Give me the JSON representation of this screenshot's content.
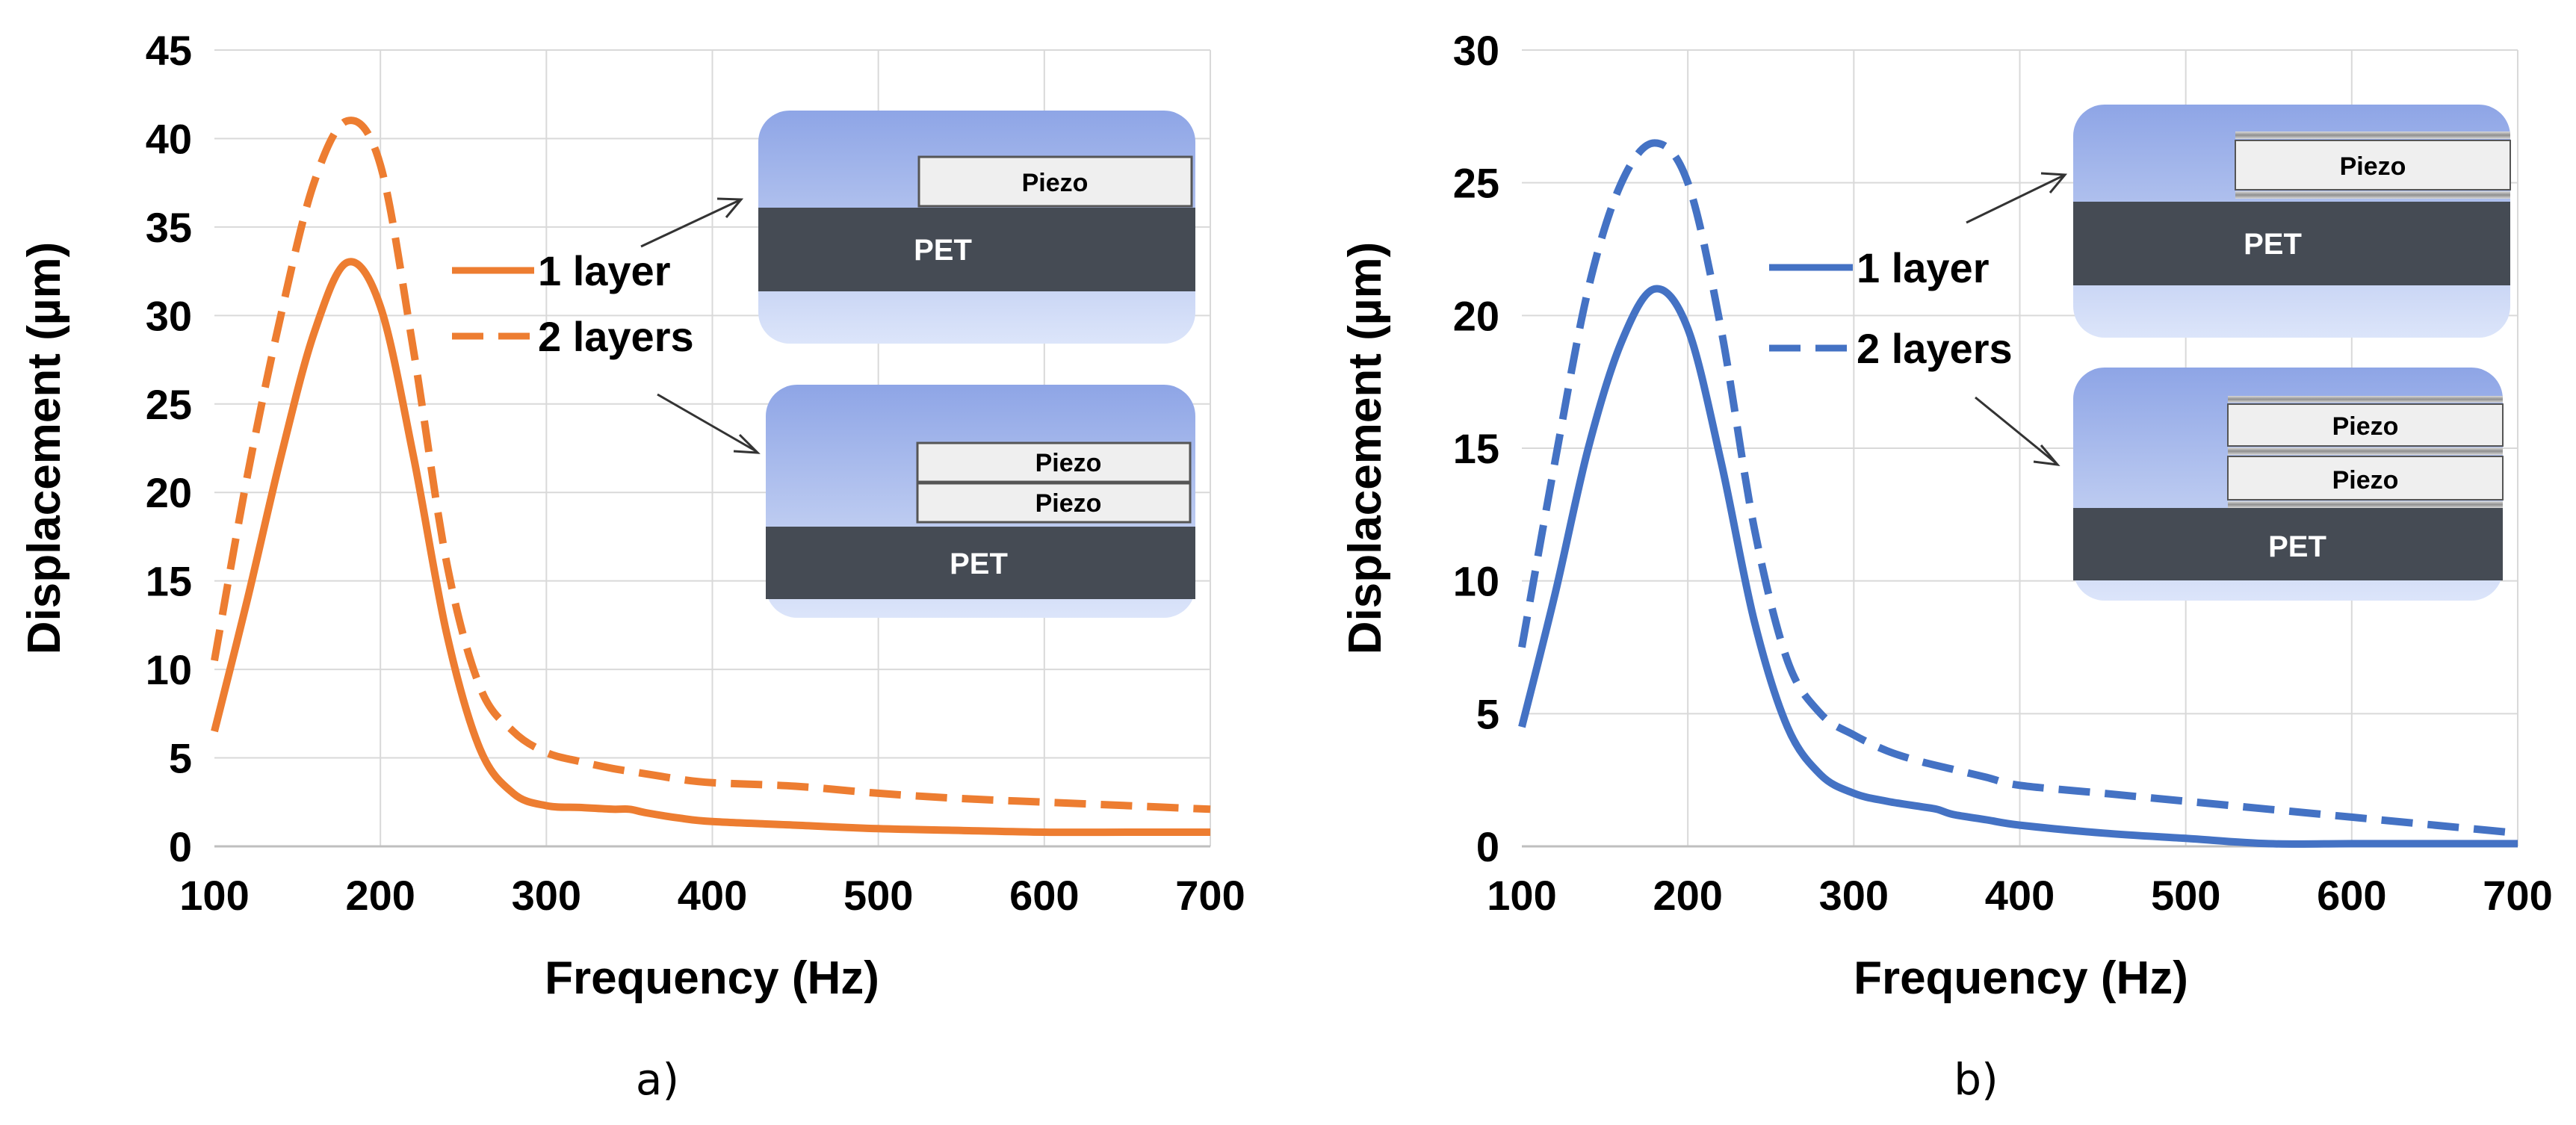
{
  "chart_data": [
    {
      "type": "line",
      "panel_label": "a)",
      "title": "",
      "xlabel": "Frequency (Hz)",
      "ylabel": "Displacement (µm)",
      "xlim": [
        100,
        700
      ],
      "ylim": [
        0,
        45
      ],
      "xticks": [
        100,
        200,
        300,
        400,
        500,
        600,
        700
      ],
      "yticks": [
        0,
        5,
        10,
        15,
        20,
        25,
        30,
        35,
        40,
        45
      ],
      "grid": true,
      "color": "#ED7D31",
      "series": [
        {
          "name": "1 layer",
          "style": "solid",
          "x": [
            100,
            120,
            140,
            160,
            180,
            200,
            220,
            240,
            260,
            280,
            300,
            320,
            340,
            350,
            360,
            380,
            400,
            450,
            500,
            550,
            600,
            650,
            700
          ],
          "y": [
            6.5,
            14,
            22,
            29,
            33,
            30.5,
            22,
            12,
            5.5,
            3,
            2.3,
            2.2,
            2.1,
            2.1,
            1.9,
            1.6,
            1.4,
            1.2,
            1.0,
            0.9,
            0.8,
            0.8,
            0.8
          ]
        },
        {
          "name": "2 layers",
          "style": "dashed",
          "x": [
            100,
            120,
            140,
            160,
            180,
            200,
            220,
            240,
            260,
            280,
            300,
            320,
            340,
            360,
            380,
            400,
            450,
            500,
            550,
            600,
            650,
            700
          ],
          "y": [
            10.5,
            21,
            30,
            37.5,
            41,
            38.5,
            28,
            16,
            9,
            6.5,
            5.3,
            4.8,
            4.4,
            4.1,
            3.8,
            3.6,
            3.4,
            3.0,
            2.7,
            2.5,
            2.3,
            2.1
          ]
        }
      ],
      "insets": [
        {
          "layers": [
            "Piezo"
          ],
          "substrate": "PET"
        },
        {
          "layers": [
            "Piezo",
            "Piezo"
          ],
          "substrate": "PET"
        }
      ]
    },
    {
      "type": "line",
      "panel_label": "b)",
      "title": "",
      "xlabel": "Frequency (Hz)",
      "ylabel": "Displacement (µm)",
      "xlim": [
        100,
        700
      ],
      "ylim": [
        0,
        30
      ],
      "xticks": [
        100,
        200,
        300,
        400,
        500,
        600,
        700
      ],
      "yticks": [
        0,
        5,
        10,
        15,
        20,
        25,
        30
      ],
      "grid": true,
      "color": "#4472C4",
      "series": [
        {
          "name": "1 layer",
          "style": "solid",
          "x": [
            100,
            120,
            140,
            160,
            180,
            200,
            220,
            240,
            260,
            280,
            300,
            320,
            340,
            350,
            360,
            380,
            400,
            450,
            500,
            550,
            600,
            650,
            700
          ],
          "y": [
            4.5,
            9.5,
            15,
            19,
            21,
            19.5,
            14.5,
            8.5,
            4.5,
            2.7,
            2.0,
            1.7,
            1.5,
            1.4,
            1.2,
            1.0,
            0.8,
            0.5,
            0.3,
            0.1,
            0.1,
            0.1,
            0.1
          ]
        },
        {
          "name": "2 layers",
          "style": "dashed",
          "x": [
            100,
            120,
            140,
            160,
            180,
            200,
            220,
            240,
            260,
            280,
            300,
            320,
            340,
            360,
            380,
            400,
            450,
            500,
            550,
            600,
            650,
            700
          ],
          "y": [
            7.5,
            14.5,
            21,
            25,
            26.5,
            25,
            19.5,
            12,
            7,
            5,
            4.2,
            3.6,
            3.2,
            2.9,
            2.6,
            2.3,
            2.0,
            1.7,
            1.4,
            1.1,
            0.8,
            0.5
          ]
        }
      ],
      "insets": [
        {
          "layers": [
            "Piezo"
          ],
          "substrate": "PET"
        },
        {
          "layers": [
            "Piezo",
            "Piezo"
          ],
          "substrate": "PET"
        }
      ]
    }
  ]
}
